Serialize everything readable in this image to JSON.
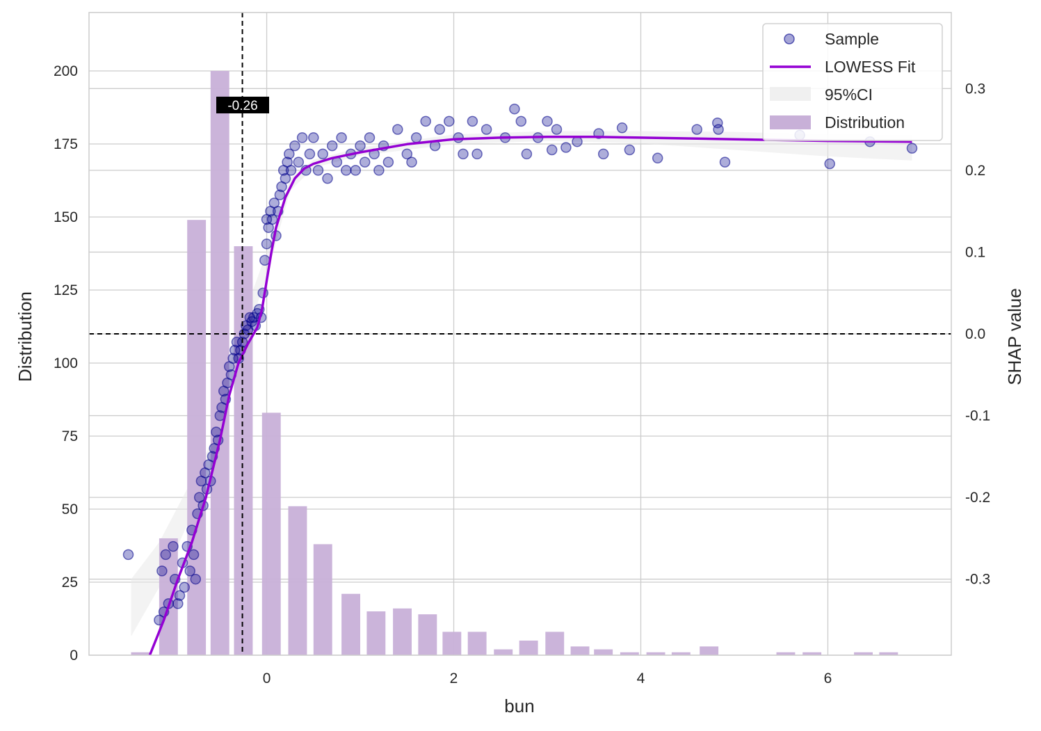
{
  "chart_data": {
    "type": "scatter",
    "title": "",
    "xlabel": "bun",
    "ylabel_left": "Distribution",
    "ylabel_right": "SHAP value",
    "xlim": [
      -1.9,
      7.32
    ],
    "ylim_left": [
      0,
      220
    ],
    "ylim_right": [
      -0.393,
      0.393
    ],
    "x_ticks": [
      0,
      2,
      4,
      6
    ],
    "y_left_ticks": [
      0,
      25,
      50,
      75,
      100,
      125,
      150,
      175,
      200
    ],
    "y_right_ticks": [
      -0.3,
      -0.2,
      -0.1,
      0.0,
      0.1,
      0.2,
      0.3
    ],
    "y_right_tick_labels": [
      "-0.3",
      "-0.2",
      "-0.1",
      "0.0",
      "0.1",
      "0.2",
      "0.3"
    ],
    "threshold_x": -0.26,
    "threshold_label": "-0.26",
    "zero_line_shap": 0.0,
    "colors": {
      "sample": "#00008B",
      "lowess": "#9400D3",
      "histogram": "#C8B0D8",
      "ci": "#EAEAEA",
      "reference_line": "#000000"
    },
    "legend": {
      "position": "top-right",
      "entries": [
        "Sample",
        "LOWESS Fit",
        "95%CI",
        "Distribution"
      ]
    },
    "histogram": {
      "bin_width": 0.2,
      "centers": [
        -1.35,
        -1.05,
        -0.75,
        -0.5,
        -0.25,
        0.05,
        0.33,
        0.6,
        0.9,
        1.17,
        1.45,
        1.72,
        1.98,
        2.25,
        2.53,
        2.8,
        3.08,
        3.35,
        3.6,
        3.88,
        4.16,
        4.43,
        4.73,
        5.0,
        5.27,
        5.55,
        5.83,
        6.1,
        6.38,
        6.65
      ],
      "counts": [
        1,
        40,
        149,
        200,
        140,
        83,
        51,
        38,
        21,
        15,
        16,
        14,
        8,
        8,
        2,
        5,
        8,
        3,
        2,
        1,
        1,
        1,
        3,
        0,
        0,
        1,
        1,
        0,
        1,
        1
      ]
    },
    "ci_band": {
      "x": [
        -1.45,
        -1.15,
        -0.6,
        -0.3,
        0.0,
        0.25,
        0.5,
        1.0,
        2.0,
        3.0,
        4.0,
        5.0,
        6.0,
        6.9
      ],
      "lower": [
        -0.37,
        -0.31,
        -0.17,
        -0.03,
        0.07,
        0.175,
        0.203,
        0.218,
        0.232,
        0.236,
        0.233,
        0.225,
        0.217,
        0.212
      ],
      "upper": [
        -0.3,
        -0.255,
        -0.135,
        0.005,
        0.1,
        0.19,
        0.213,
        0.228,
        0.244,
        0.248,
        0.248,
        0.247,
        0.244,
        0.243
      ]
    },
    "lowess": {
      "x": [
        -1.25,
        -1.1,
        -0.95,
        -0.8,
        -0.65,
        -0.5,
        -0.4,
        -0.3,
        -0.2,
        -0.1,
        -0.05,
        0.0,
        0.05,
        0.1,
        0.2,
        0.3,
        0.4,
        0.5,
        0.7,
        1.0,
        1.5,
        2.0,
        2.5,
        3.0,
        3.5,
        4.0,
        5.0,
        6.0,
        6.9
      ],
      "y": [
        -0.393,
        -0.35,
        -0.3,
        -0.255,
        -0.2,
        -0.13,
        -0.075,
        -0.035,
        -0.012,
        0.008,
        0.03,
        0.065,
        0.1,
        0.13,
        0.167,
        0.19,
        0.202,
        0.208,
        0.215,
        0.222,
        0.232,
        0.238,
        0.24,
        0.241,
        0.241,
        0.24,
        0.238,
        0.236,
        0.235
      ]
    },
    "samples": [
      {
        "x": -1.48,
        "y": -0.27
      },
      {
        "x": -1.15,
        "y": -0.35
      },
      {
        "x": -1.1,
        "y": -0.34
      },
      {
        "x": -1.05,
        "y": -0.33
      },
      {
        "x": -1.12,
        "y": -0.29
      },
      {
        "x": -1.08,
        "y": -0.27
      },
      {
        "x": -1.0,
        "y": -0.26
      },
      {
        "x": -0.98,
        "y": -0.3
      },
      {
        "x": -0.95,
        "y": -0.33
      },
      {
        "x": -0.93,
        "y": -0.32
      },
      {
        "x": -0.9,
        "y": -0.28
      },
      {
        "x": -0.88,
        "y": -0.31
      },
      {
        "x": -0.85,
        "y": -0.26
      },
      {
        "x": -0.82,
        "y": -0.29
      },
      {
        "x": -0.8,
        "y": -0.24
      },
      {
        "x": -0.78,
        "y": -0.27
      },
      {
        "x": -0.76,
        "y": -0.3
      },
      {
        "x": -0.74,
        "y": -0.22
      },
      {
        "x": -0.72,
        "y": -0.2
      },
      {
        "x": -0.7,
        "y": -0.18
      },
      {
        "x": -0.68,
        "y": -0.21
      },
      {
        "x": -0.66,
        "y": -0.17
      },
      {
        "x": -0.64,
        "y": -0.19
      },
      {
        "x": -0.62,
        "y": -0.16
      },
      {
        "x": -0.6,
        "y": -0.18
      },
      {
        "x": -0.58,
        "y": -0.15
      },
      {
        "x": -0.56,
        "y": -0.14
      },
      {
        "x": -0.54,
        "y": -0.12
      },
      {
        "x": -0.52,
        "y": -0.13
      },
      {
        "x": -0.5,
        "y": -0.1
      },
      {
        "x": -0.48,
        "y": -0.09
      },
      {
        "x": -0.46,
        "y": -0.07
      },
      {
        "x": -0.44,
        "y": -0.08
      },
      {
        "x": -0.42,
        "y": -0.06
      },
      {
        "x": -0.4,
        "y": -0.04
      },
      {
        "x": -0.38,
        "y": -0.05
      },
      {
        "x": -0.36,
        "y": -0.03
      },
      {
        "x": -0.34,
        "y": -0.02
      },
      {
        "x": -0.32,
        "y": -0.01
      },
      {
        "x": -0.3,
        "y": -0.03
      },
      {
        "x": -0.28,
        "y": -0.02
      },
      {
        "x": -0.26,
        "y": -0.01
      },
      {
        "x": -0.24,
        "y": 0.0
      },
      {
        "x": -0.22,
        "y": 0.01
      },
      {
        "x": -0.2,
        "y": 0.005
      },
      {
        "x": -0.18,
        "y": 0.02
      },
      {
        "x": -0.16,
        "y": 0.015
      },
      {
        "x": -0.14,
        "y": 0.02
      },
      {
        "x": -0.12,
        "y": 0.01
      },
      {
        "x": -0.1,
        "y": 0.025
      },
      {
        "x": -0.08,
        "y": 0.03
      },
      {
        "x": -0.06,
        "y": 0.02
      },
      {
        "x": -0.04,
        "y": 0.05
      },
      {
        "x": -0.02,
        "y": 0.09
      },
      {
        "x": 0.0,
        "y": 0.11
      },
      {
        "x": 0.0,
        "y": 0.14
      },
      {
        "x": 0.02,
        "y": 0.13
      },
      {
        "x": 0.04,
        "y": 0.15
      },
      {
        "x": 0.06,
        "y": 0.14
      },
      {
        "x": 0.08,
        "y": 0.16
      },
      {
        "x": 0.1,
        "y": 0.12
      },
      {
        "x": 0.12,
        "y": 0.15
      },
      {
        "x": 0.14,
        "y": 0.17
      },
      {
        "x": 0.16,
        "y": 0.18
      },
      {
        "x": 0.18,
        "y": 0.2
      },
      {
        "x": 0.2,
        "y": 0.19
      },
      {
        "x": 0.22,
        "y": 0.21
      },
      {
        "x": 0.24,
        "y": 0.22
      },
      {
        "x": 0.26,
        "y": 0.2
      },
      {
        "x": 0.3,
        "y": 0.23
      },
      {
        "x": 0.34,
        "y": 0.21
      },
      {
        "x": 0.38,
        "y": 0.24
      },
      {
        "x": 0.42,
        "y": 0.2
      },
      {
        "x": 0.46,
        "y": 0.22
      },
      {
        "x": 0.5,
        "y": 0.24
      },
      {
        "x": 0.55,
        "y": 0.2
      },
      {
        "x": 0.6,
        "y": 0.22
      },
      {
        "x": 0.65,
        "y": 0.19
      },
      {
        "x": 0.7,
        "y": 0.23
      },
      {
        "x": 0.75,
        "y": 0.21
      },
      {
        "x": 0.8,
        "y": 0.24
      },
      {
        "x": 0.85,
        "y": 0.2
      },
      {
        "x": 0.9,
        "y": 0.22
      },
      {
        "x": 0.95,
        "y": 0.2
      },
      {
        "x": 1.0,
        "y": 0.23
      },
      {
        "x": 1.05,
        "y": 0.21
      },
      {
        "x": 1.1,
        "y": 0.24
      },
      {
        "x": 1.15,
        "y": 0.22
      },
      {
        "x": 1.2,
        "y": 0.2
      },
      {
        "x": 1.25,
        "y": 0.23
      },
      {
        "x": 1.3,
        "y": 0.21
      },
      {
        "x": 1.4,
        "y": 0.25
      },
      {
        "x": 1.5,
        "y": 0.22
      },
      {
        "x": 1.55,
        "y": 0.21
      },
      {
        "x": 1.6,
        "y": 0.24
      },
      {
        "x": 1.7,
        "y": 0.26
      },
      {
        "x": 1.8,
        "y": 0.23
      },
      {
        "x": 1.85,
        "y": 0.25
      },
      {
        "x": 1.95,
        "y": 0.26
      },
      {
        "x": 2.05,
        "y": 0.24
      },
      {
        "x": 2.1,
        "y": 0.22
      },
      {
        "x": 2.2,
        "y": 0.26
      },
      {
        "x": 2.25,
        "y": 0.22
      },
      {
        "x": 2.35,
        "y": 0.25
      },
      {
        "x": 2.55,
        "y": 0.24
      },
      {
        "x": 2.65,
        "y": 0.275
      },
      {
        "x": 2.72,
        "y": 0.26
      },
      {
        "x": 2.78,
        "y": 0.22
      },
      {
        "x": 2.9,
        "y": 0.24
      },
      {
        "x": 3.0,
        "y": 0.26
      },
      {
        "x": 3.05,
        "y": 0.225
      },
      {
        "x": 3.1,
        "y": 0.25
      },
      {
        "x": 3.2,
        "y": 0.228
      },
      {
        "x": 3.32,
        "y": 0.235
      },
      {
        "x": 3.55,
        "y": 0.245
      },
      {
        "x": 3.6,
        "y": 0.22
      },
      {
        "x": 3.8,
        "y": 0.252
      },
      {
        "x": 3.88,
        "y": 0.225
      },
      {
        "x": 4.18,
        "y": 0.215
      },
      {
        "x": 4.6,
        "y": 0.25
      },
      {
        "x": 4.82,
        "y": 0.258
      },
      {
        "x": 4.83,
        "y": 0.25
      },
      {
        "x": 4.9,
        "y": 0.21
      },
      {
        "x": 5.7,
        "y": 0.243
      },
      {
        "x": 6.02,
        "y": 0.208
      },
      {
        "x": 6.45,
        "y": 0.235
      },
      {
        "x": 6.9,
        "y": 0.227
      }
    ]
  }
}
